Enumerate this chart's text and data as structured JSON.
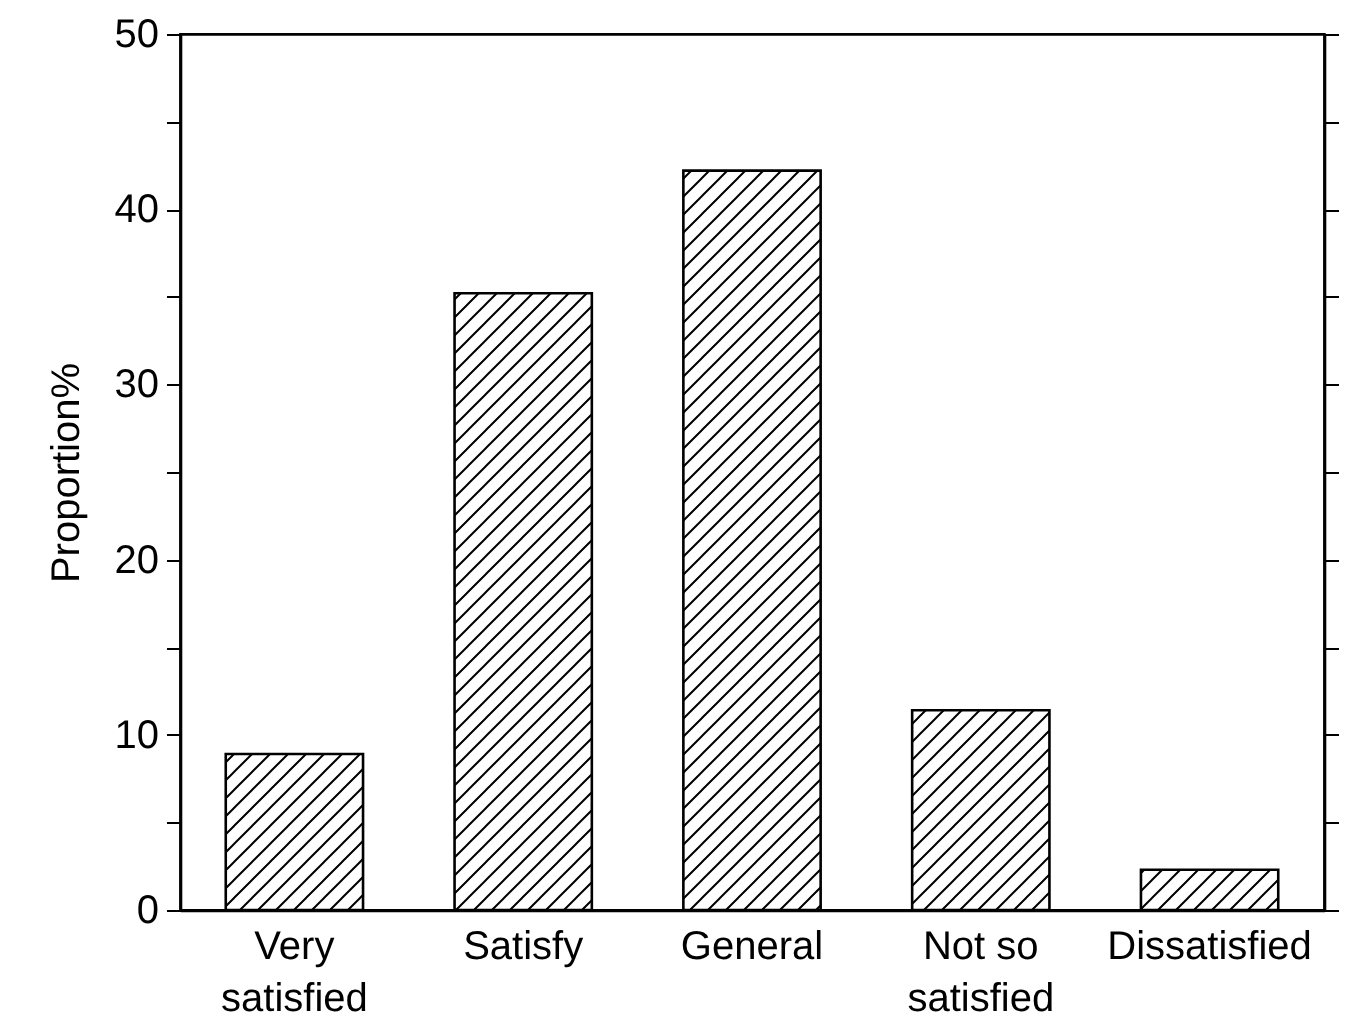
{
  "chart_data": {
    "type": "bar",
    "ylabel": "Proportion%",
    "categories": [
      "Very satisfied",
      "Satisfy",
      "General",
      "Not so satisfied",
      "Dissatisfied"
    ],
    "values": [
      8.9,
      35.2,
      42.2,
      11.4,
      2.3
    ],
    "color": "#000000",
    "ylim": [
      0,
      50
    ],
    "yticks": [
      0,
      {
        "value": 5,
        "label": null
      },
      10,
      {
        "value": 15,
        "label": null
      },
      20,
      {
        "value": 25,
        "label": null
      },
      30,
      {
        "value": 35,
        "label": null
      },
      40,
      {
        "value": 45,
        "label": null
      },
      50
    ],
    "grid": false
  }
}
